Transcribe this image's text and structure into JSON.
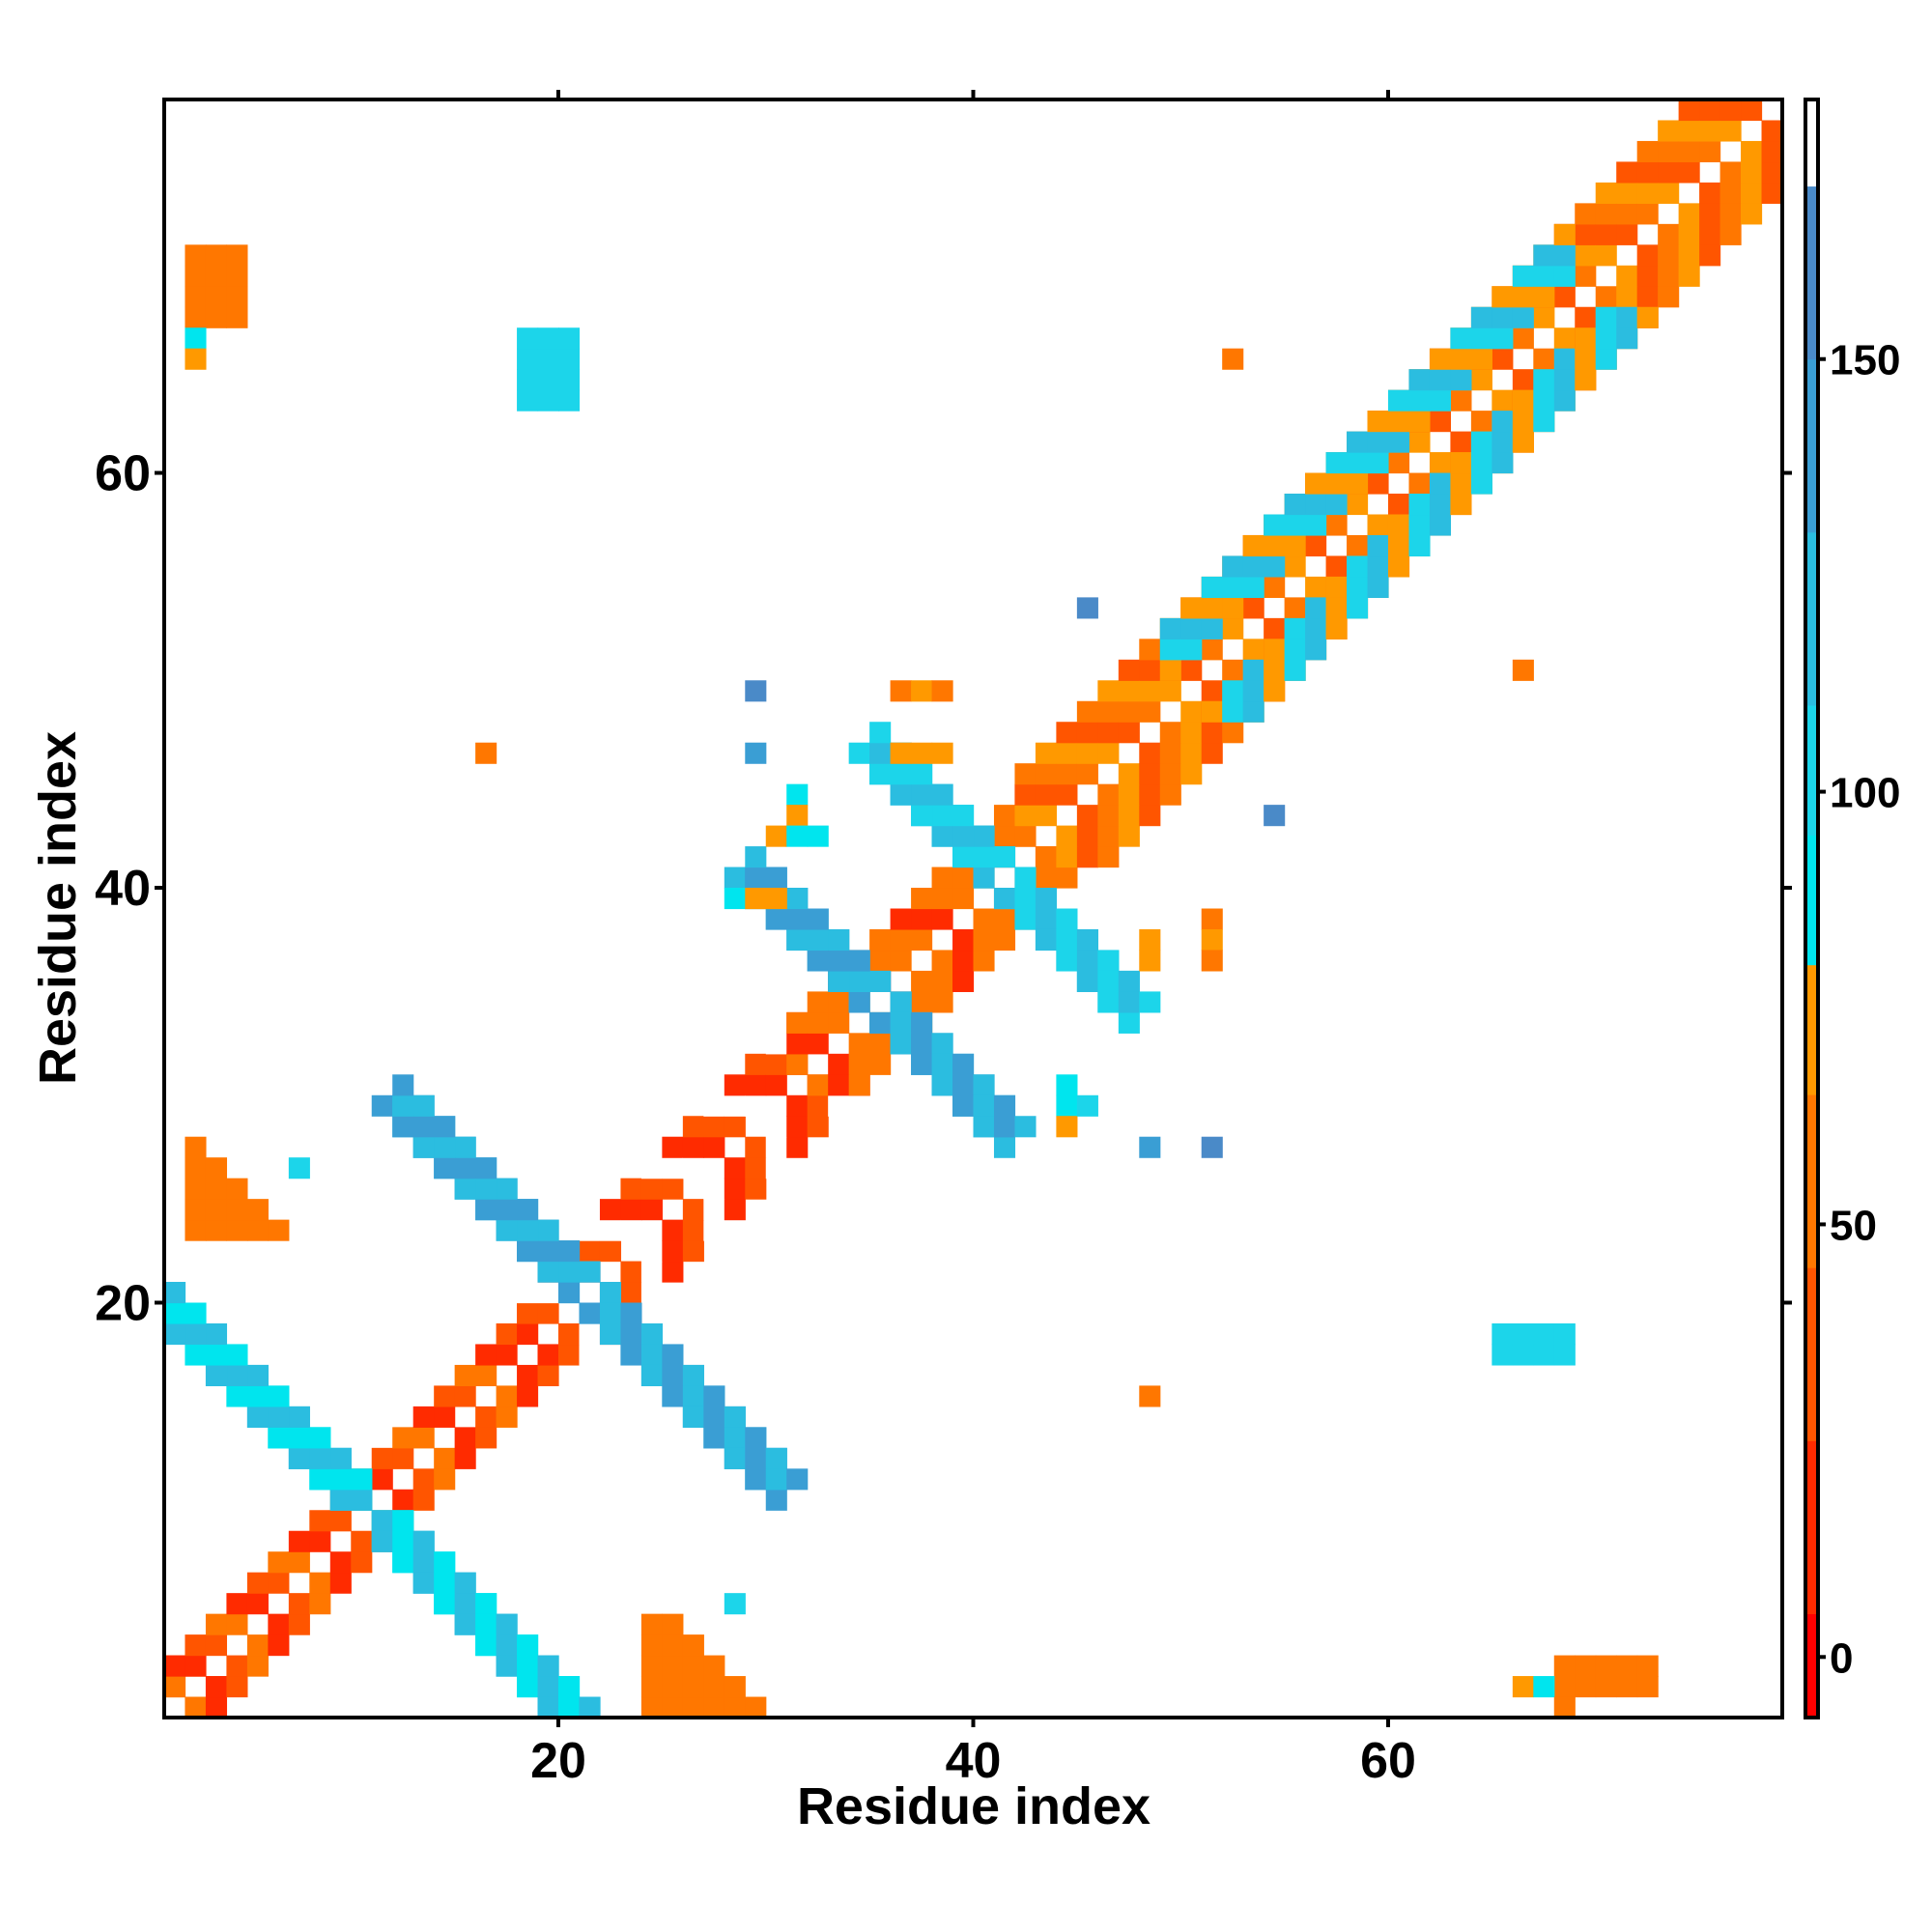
{
  "chart_data": {
    "type": "heatmap",
    "title": "",
    "xlabel": "Residue index",
    "ylabel": "Residue index",
    "x_range": [
      1,
      78
    ],
    "y_range": [
      1,
      78
    ],
    "x_ticks": [
      20,
      40,
      60
    ],
    "y_ticks": [
      20,
      40,
      60
    ],
    "grid": false,
    "legend": "right",
    "colorbar": {
      "ticks": [
        0,
        50,
        100,
        150
      ],
      "range": [
        -7,
        180
      ],
      "bands": [
        {
          "from": -7,
          "to": 5,
          "color": "#ff0000"
        },
        {
          "from": 5,
          "to": 25,
          "color": "#ff2b00"
        },
        {
          "from": 25,
          "to": 45,
          "color": "#ff5500"
        },
        {
          "from": 45,
          "to": 65,
          "color": "#ff7700"
        },
        {
          "from": 65,
          "to": 80,
          "color": "#ff9900"
        },
        {
          "from": 80,
          "to": 95,
          "color": "#00e5ee"
        },
        {
          "from": 95,
          "to": 110,
          "color": "#1cd5ea"
        },
        {
          "from": 110,
          "to": 130,
          "color": "#2bbde0"
        },
        {
          "from": 130,
          "to": 150,
          "color": "#3a9ed4"
        },
        {
          "from": 150,
          "to": 170,
          "color": "#4a8ac8"
        },
        {
          "from": 170,
          "to": 180,
          "color": "#ffffff"
        }
      ]
    },
    "patches": [
      {
        "x": [
          1,
          3
        ],
        "y": [
          1,
          3
        ],
        "value": 55,
        "shape": "diag-plus"
      },
      {
        "x": [
          1,
          18
        ],
        "y": [
          1,
          18
        ],
        "value": 40,
        "shape": "band",
        "width": 2,
        "offset": 1
      },
      {
        "x": [
          18,
          31
        ],
        "y": [
          18,
          31
        ],
        "value": 15,
        "shape": "band",
        "width": 3,
        "offset": 1
      },
      {
        "x": [
          31,
          42
        ],
        "y": [
          31,
          42
        ],
        "value": 45,
        "shape": "band",
        "width": 3,
        "offset": 1
      },
      {
        "x": [
          42,
          78
        ],
        "y": [
          42,
          78
        ],
        "value": 55,
        "shape": "band",
        "width": 4,
        "offset": 1
      },
      {
        "x": [
          49,
          68
        ],
        "y": [
          49,
          68
        ],
        "value": 100,
        "shape": "band",
        "width": 3,
        "offset": 2
      },
      {
        "x": [
          1,
          13
        ],
        "y": [
          1,
          13
        ],
        "value": 110,
        "shape": "anti",
        "cx": 11,
        "cy": 10,
        "len": 11,
        "width": 3
      },
      {
        "x": [
          13,
          28
        ],
        "y": [
          13,
          28
        ],
        "value": 145,
        "shape": "anti",
        "cx": 21,
        "cy": 21,
        "len": 9,
        "width": 3
      },
      {
        "x": [
          29,
          41
        ],
        "y": [
          29,
          41
        ],
        "value": 130,
        "shape": "anti",
        "cx": 35,
        "cy": 35,
        "len": 6,
        "width": 3
      },
      {
        "x": [
          37,
          48
        ],
        "y": [
          37,
          48
        ],
        "value": 120,
        "shape": "anti",
        "cx": 41,
        "cy": 41,
        "len": 6,
        "width": 3
      },
      {
        "x": [
          18,
          20
        ],
        "y": [
          64,
          67
        ],
        "value": 105,
        "shape": "block"
      },
      {
        "x": [
          2,
          4
        ],
        "y": [
          68,
          71
        ],
        "value": 60,
        "shape": "block"
      },
      {
        "x": [
          2,
          6
        ],
        "y": [
          24,
          28
        ],
        "value": 60,
        "shape": "triangle"
      },
      {
        "x": [
          65,
          68
        ],
        "y": [
          18,
          19
        ],
        "value": 105,
        "shape": "block"
      },
      {
        "x": [
          68,
          72
        ],
        "y": [
          2,
          3
        ],
        "value": 60,
        "shape": "block"
      },
      {
        "x": [
          24,
          29
        ],
        "y": [
          1,
          5
        ],
        "value": 60,
        "shape": "triangle"
      }
    ],
    "points": [
      {
        "x": 2,
        "y": 67,
        "value": 90
      },
      {
        "x": 2,
        "y": 66,
        "value": 70
      },
      {
        "x": 7,
        "y": 27,
        "value": 100
      },
      {
        "x": 16,
        "y": 47,
        "value": 55
      },
      {
        "x": 29,
        "y": 50,
        "value": 150
      },
      {
        "x": 29,
        "y": 47,
        "value": 130
      },
      {
        "x": 31,
        "y": 45,
        "value": 90
      },
      {
        "x": 31,
        "y": 44,
        "value": 70
      },
      {
        "x": 30,
        "y": 43,
        "value": 70
      },
      {
        "x": 31,
        "y": 43,
        "value": 90
      },
      {
        "x": 32,
        "y": 43,
        "value": 90
      },
      {
        "x": 28,
        "y": 40,
        "value": 90
      },
      {
        "x": 29,
        "y": 40,
        "value": 70
      },
      {
        "x": 30,
        "y": 40,
        "value": 70
      },
      {
        "x": 28,
        "y": 6,
        "value": 100
      },
      {
        "x": 36,
        "y": 47,
        "value": 70
      },
      {
        "x": 37,
        "y": 47,
        "value": 70
      },
      {
        "x": 38,
        "y": 47,
        "value": 70
      },
      {
        "x": 36,
        "y": 50,
        "value": 60
      },
      {
        "x": 37,
        "y": 50,
        "value": 70
      },
      {
        "x": 38,
        "y": 50,
        "value": 60
      },
      {
        "x": 45,
        "y": 54,
        "value": 150
      },
      {
        "x": 44,
        "y": 31,
        "value": 90
      },
      {
        "x": 44,
        "y": 30,
        "value": 90
      },
      {
        "x": 44,
        "y": 29,
        "value": 70
      },
      {
        "x": 45,
        "y": 30,
        "value": 100
      },
      {
        "x": 48,
        "y": 28,
        "value": 130
      },
      {
        "x": 51,
        "y": 28,
        "value": 150
      },
      {
        "x": 48,
        "y": 16,
        "value": 55
      },
      {
        "x": 51,
        "y": 39,
        "value": 60
      },
      {
        "x": 51,
        "y": 38,
        "value": 70
      },
      {
        "x": 51,
        "y": 37,
        "value": 60
      },
      {
        "x": 48,
        "y": 37,
        "value": 70
      },
      {
        "x": 48,
        "y": 38,
        "value": 70
      },
      {
        "x": 52,
        "y": 66,
        "value": 60
      },
      {
        "x": 54,
        "y": 44,
        "value": 150
      },
      {
        "x": 66,
        "y": 51,
        "value": 60
      },
      {
        "x": 66,
        "y": 2,
        "value": 70
      },
      {
        "x": 67,
        "y": 2,
        "value": 90
      },
      {
        "x": 68,
        "y": 1,
        "value": 55
      }
    ]
  }
}
